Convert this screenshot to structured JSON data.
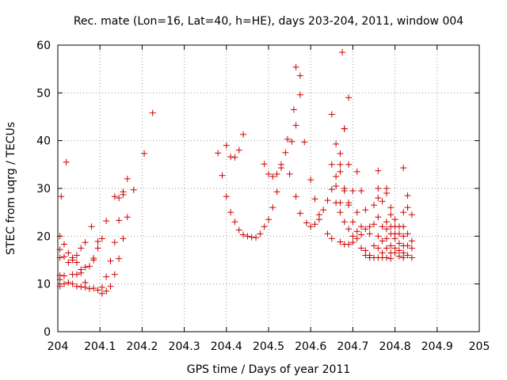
{
  "chart_data": {
    "type": "scatter",
    "title": "Rec. mate (Lon=16, Lat=40, h=HE), days 203-204, 2011, window 004",
    "xlabel": "GPS time / Days of year 2011",
    "ylabel": "STEC from uqrg / TECUs",
    "xlim": [
      204,
      205
    ],
    "ylim": [
      0,
      60
    ],
    "xticks": [
      "204",
      "204.1",
      "204.2",
      "204.3",
      "204.4",
      "204.5",
      "204.6",
      "204.7",
      "204.8",
      "204.9",
      "205"
    ],
    "yticks": [
      "0",
      "10",
      "20",
      "30",
      "40",
      "50",
      "60"
    ],
    "grid": true,
    "legend": "none",
    "marker": "+",
    "color": "#cc0000",
    "series": [
      {
        "points": [
          [
            204.005,
            9.5
          ],
          [
            204.005,
            10.9
          ],
          [
            204.005,
            11.8
          ],
          [
            204.005,
            15.5
          ],
          [
            204.005,
            17.2
          ],
          [
            204.005,
            20.0
          ],
          [
            204.008,
            28.3
          ],
          [
            204.015,
            10.0
          ],
          [
            204.015,
            11.7
          ],
          [
            204.015,
            15.7
          ],
          [
            204.015,
            18.3
          ],
          [
            204.02,
            35.5
          ],
          [
            204.025,
            10.3
          ],
          [
            204.025,
            14.5
          ],
          [
            204.025,
            16.5
          ],
          [
            204.035,
            10.0
          ],
          [
            204.035,
            12.0
          ],
          [
            204.035,
            15.0
          ],
          [
            204.035,
            15.5
          ],
          [
            204.045,
            9.5
          ],
          [
            204.045,
            12.0
          ],
          [
            204.045,
            14.5
          ],
          [
            204.045,
            16.0
          ],
          [
            204.055,
            9.4
          ],
          [
            204.055,
            12.3
          ],
          [
            204.055,
            13.0
          ],
          [
            204.055,
            17.5
          ],
          [
            204.065,
            9.3
          ],
          [
            204.065,
            10.3
          ],
          [
            204.065,
            13.5
          ],
          [
            204.065,
            18.7
          ],
          [
            204.075,
            9.0
          ],
          [
            204.075,
            13.7
          ],
          [
            204.08,
            22.0
          ],
          [
            204.085,
            9.1
          ],
          [
            204.085,
            15.0
          ],
          [
            204.085,
            15.4
          ],
          [
            204.095,
            8.7
          ],
          [
            204.095,
            17.5
          ],
          [
            204.095,
            18.9
          ],
          [
            204.105,
            8.0
          ],
          [
            204.105,
            9.3
          ],
          [
            204.105,
            19.5
          ],
          [
            204.115,
            8.5
          ],
          [
            204.115,
            11.5
          ],
          [
            204.115,
            23.2
          ],
          [
            204.125,
            9.5
          ],
          [
            204.125,
            14.8
          ],
          [
            204.135,
            12.0
          ],
          [
            204.135,
            18.7
          ],
          [
            204.135,
            28.3
          ],
          [
            204.145,
            15.3
          ],
          [
            204.145,
            23.3
          ],
          [
            204.145,
            28.0
          ],
          [
            204.155,
            19.5
          ],
          [
            204.155,
            28.7
          ],
          [
            204.155,
            29.3
          ],
          [
            204.165,
            24.0
          ],
          [
            204.165,
            32.0
          ],
          [
            204.18,
            29.7
          ],
          [
            204.205,
            37.3
          ],
          [
            204.225,
            45.8
          ],
          [
            204.38,
            37.4
          ],
          [
            204.39,
            32.7
          ],
          [
            204.4,
            39.0
          ],
          [
            204.4,
            28.3
          ],
          [
            204.41,
            25.0
          ],
          [
            204.41,
            36.6
          ],
          [
            204.42,
            23.0
          ],
          [
            204.42,
            36.5
          ],
          [
            204.43,
            21.3
          ],
          [
            204.43,
            38.0
          ],
          [
            204.44,
            20.3
          ],
          [
            204.44,
            41.3
          ],
          [
            204.45,
            20.0
          ],
          [
            204.46,
            19.8
          ],
          [
            204.47,
            19.7
          ],
          [
            204.48,
            20.5
          ],
          [
            204.49,
            22.0
          ],
          [
            204.49,
            35.1
          ],
          [
            204.5,
            23.5
          ],
          [
            204.5,
            33.0
          ],
          [
            204.51,
            26.0
          ],
          [
            204.51,
            32.5
          ],
          [
            204.52,
            29.3
          ],
          [
            204.52,
            33.0
          ],
          [
            204.53,
            34.3
          ],
          [
            204.53,
            35.0
          ],
          [
            204.54,
            37.5
          ],
          [
            204.545,
            40.3
          ],
          [
            204.55,
            33.0
          ],
          [
            204.555,
            39.8
          ],
          [
            204.56,
            46.5
          ],
          [
            204.565,
            55.4
          ],
          [
            204.565,
            43.2
          ],
          [
            204.565,
            28.3
          ],
          [
            204.575,
            53.6
          ],
          [
            204.575,
            49.6
          ],
          [
            204.575,
            24.8
          ],
          [
            204.585,
            39.7
          ],
          [
            204.59,
            22.8
          ],
          [
            204.6,
            31.8
          ],
          [
            204.6,
            22.0
          ],
          [
            204.61,
            27.8
          ],
          [
            204.61,
            22.5
          ],
          [
            204.62,
            24.5
          ],
          [
            204.62,
            23.5
          ],
          [
            204.63,
            25.5
          ],
          [
            204.64,
            27.5
          ],
          [
            204.64,
            20.5
          ],
          [
            204.65,
            45.5
          ],
          [
            204.65,
            35.0
          ],
          [
            204.65,
            29.8
          ],
          [
            204.65,
            19.5
          ],
          [
            204.66,
            39.3
          ],
          [
            204.66,
            32.5
          ],
          [
            204.66,
            30.5
          ],
          [
            204.66,
            27.0
          ],
          [
            204.67,
            37.3
          ],
          [
            204.67,
            35.0
          ],
          [
            204.67,
            33.5
          ],
          [
            204.67,
            27.0
          ],
          [
            204.67,
            25.0
          ],
          [
            204.67,
            18.8
          ],
          [
            204.675,
            58.5
          ],
          [
            204.68,
            42.5
          ],
          [
            204.68,
            42.5
          ],
          [
            204.68,
            30.0
          ],
          [
            204.68,
            29.5
          ],
          [
            204.68,
            23.0
          ],
          [
            204.68,
            18.3
          ],
          [
            204.69,
            49.0
          ],
          [
            204.69,
            35.0
          ],
          [
            204.69,
            27.0
          ],
          [
            204.69,
            26.5
          ],
          [
            204.69,
            21.5
          ],
          [
            204.69,
            18.3
          ],
          [
            204.7,
            29.5
          ],
          [
            204.7,
            23.0
          ],
          [
            204.7,
            20.0
          ],
          [
            204.7,
            18.7
          ],
          [
            204.71,
            33.5
          ],
          [
            204.71,
            25.0
          ],
          [
            204.71,
            21.0
          ],
          [
            204.71,
            19.5
          ],
          [
            204.72,
            29.5
          ],
          [
            204.72,
            22.0
          ],
          [
            204.72,
            20.3
          ],
          [
            204.72,
            17.5
          ],
          [
            204.73,
            25.5
          ],
          [
            204.73,
            21.5
          ],
          [
            204.73,
            17.0
          ],
          [
            204.73,
            16.0
          ],
          [
            204.74,
            22.0
          ],
          [
            204.74,
            20.5
          ],
          [
            204.74,
            16.0
          ],
          [
            204.74,
            15.5
          ],
          [
            204.75,
            26.5
          ],
          [
            204.75,
            22.5
          ],
          [
            204.75,
            18.0
          ],
          [
            204.75,
            15.5
          ],
          [
            204.76,
            33.7
          ],
          [
            204.76,
            30.0
          ],
          [
            204.76,
            28.0
          ],
          [
            204.76,
            24.0
          ],
          [
            204.76,
            20.0
          ],
          [
            204.76,
            17.5
          ],
          [
            204.76,
            15.5
          ],
          [
            204.77,
            27.3
          ],
          [
            204.77,
            22.0
          ],
          [
            204.77,
            19.0
          ],
          [
            204.77,
            16.5
          ],
          [
            204.77,
            15.5
          ],
          [
            204.78,
            30.0
          ],
          [
            204.78,
            29.0
          ],
          [
            204.78,
            23.0
          ],
          [
            204.78,
            21.5
          ],
          [
            204.78,
            19.5
          ],
          [
            204.78,
            17.5
          ],
          [
            204.78,
            15.5
          ],
          [
            204.79,
            26.0
          ],
          [
            204.79,
            24.5
          ],
          [
            204.79,
            22.0
          ],
          [
            204.79,
            20.5
          ],
          [
            204.79,
            18.0
          ],
          [
            204.79,
            16.5
          ],
          [
            204.79,
            15.3
          ],
          [
            204.8,
            23.5
          ],
          [
            204.8,
            22.0
          ],
          [
            204.8,
            20.5
          ],
          [
            204.8,
            19.5
          ],
          [
            204.8,
            17.5
          ],
          [
            204.8,
            16.5
          ],
          [
            204.81,
            22.0
          ],
          [
            204.81,
            20.5
          ],
          [
            204.81,
            18.5
          ],
          [
            204.81,
            17.0
          ],
          [
            204.81,
            15.8
          ],
          [
            204.82,
            34.3
          ],
          [
            204.82,
            25.0
          ],
          [
            204.82,
            22.0
          ],
          [
            204.82,
            20.0
          ],
          [
            204.82,
            18.0
          ],
          [
            204.82,
            16.5
          ],
          [
            204.82,
            15.5
          ],
          [
            204.83,
            28.5
          ],
          [
            204.83,
            26.0
          ],
          [
            204.83,
            20.5
          ],
          [
            204.83,
            18.0
          ],
          [
            204.83,
            16.0
          ],
          [
            204.84,
            24.5
          ],
          [
            204.84,
            19.0
          ],
          [
            204.84,
            17.5
          ],
          [
            204.84,
            15.5
          ]
        ]
      }
    ]
  }
}
